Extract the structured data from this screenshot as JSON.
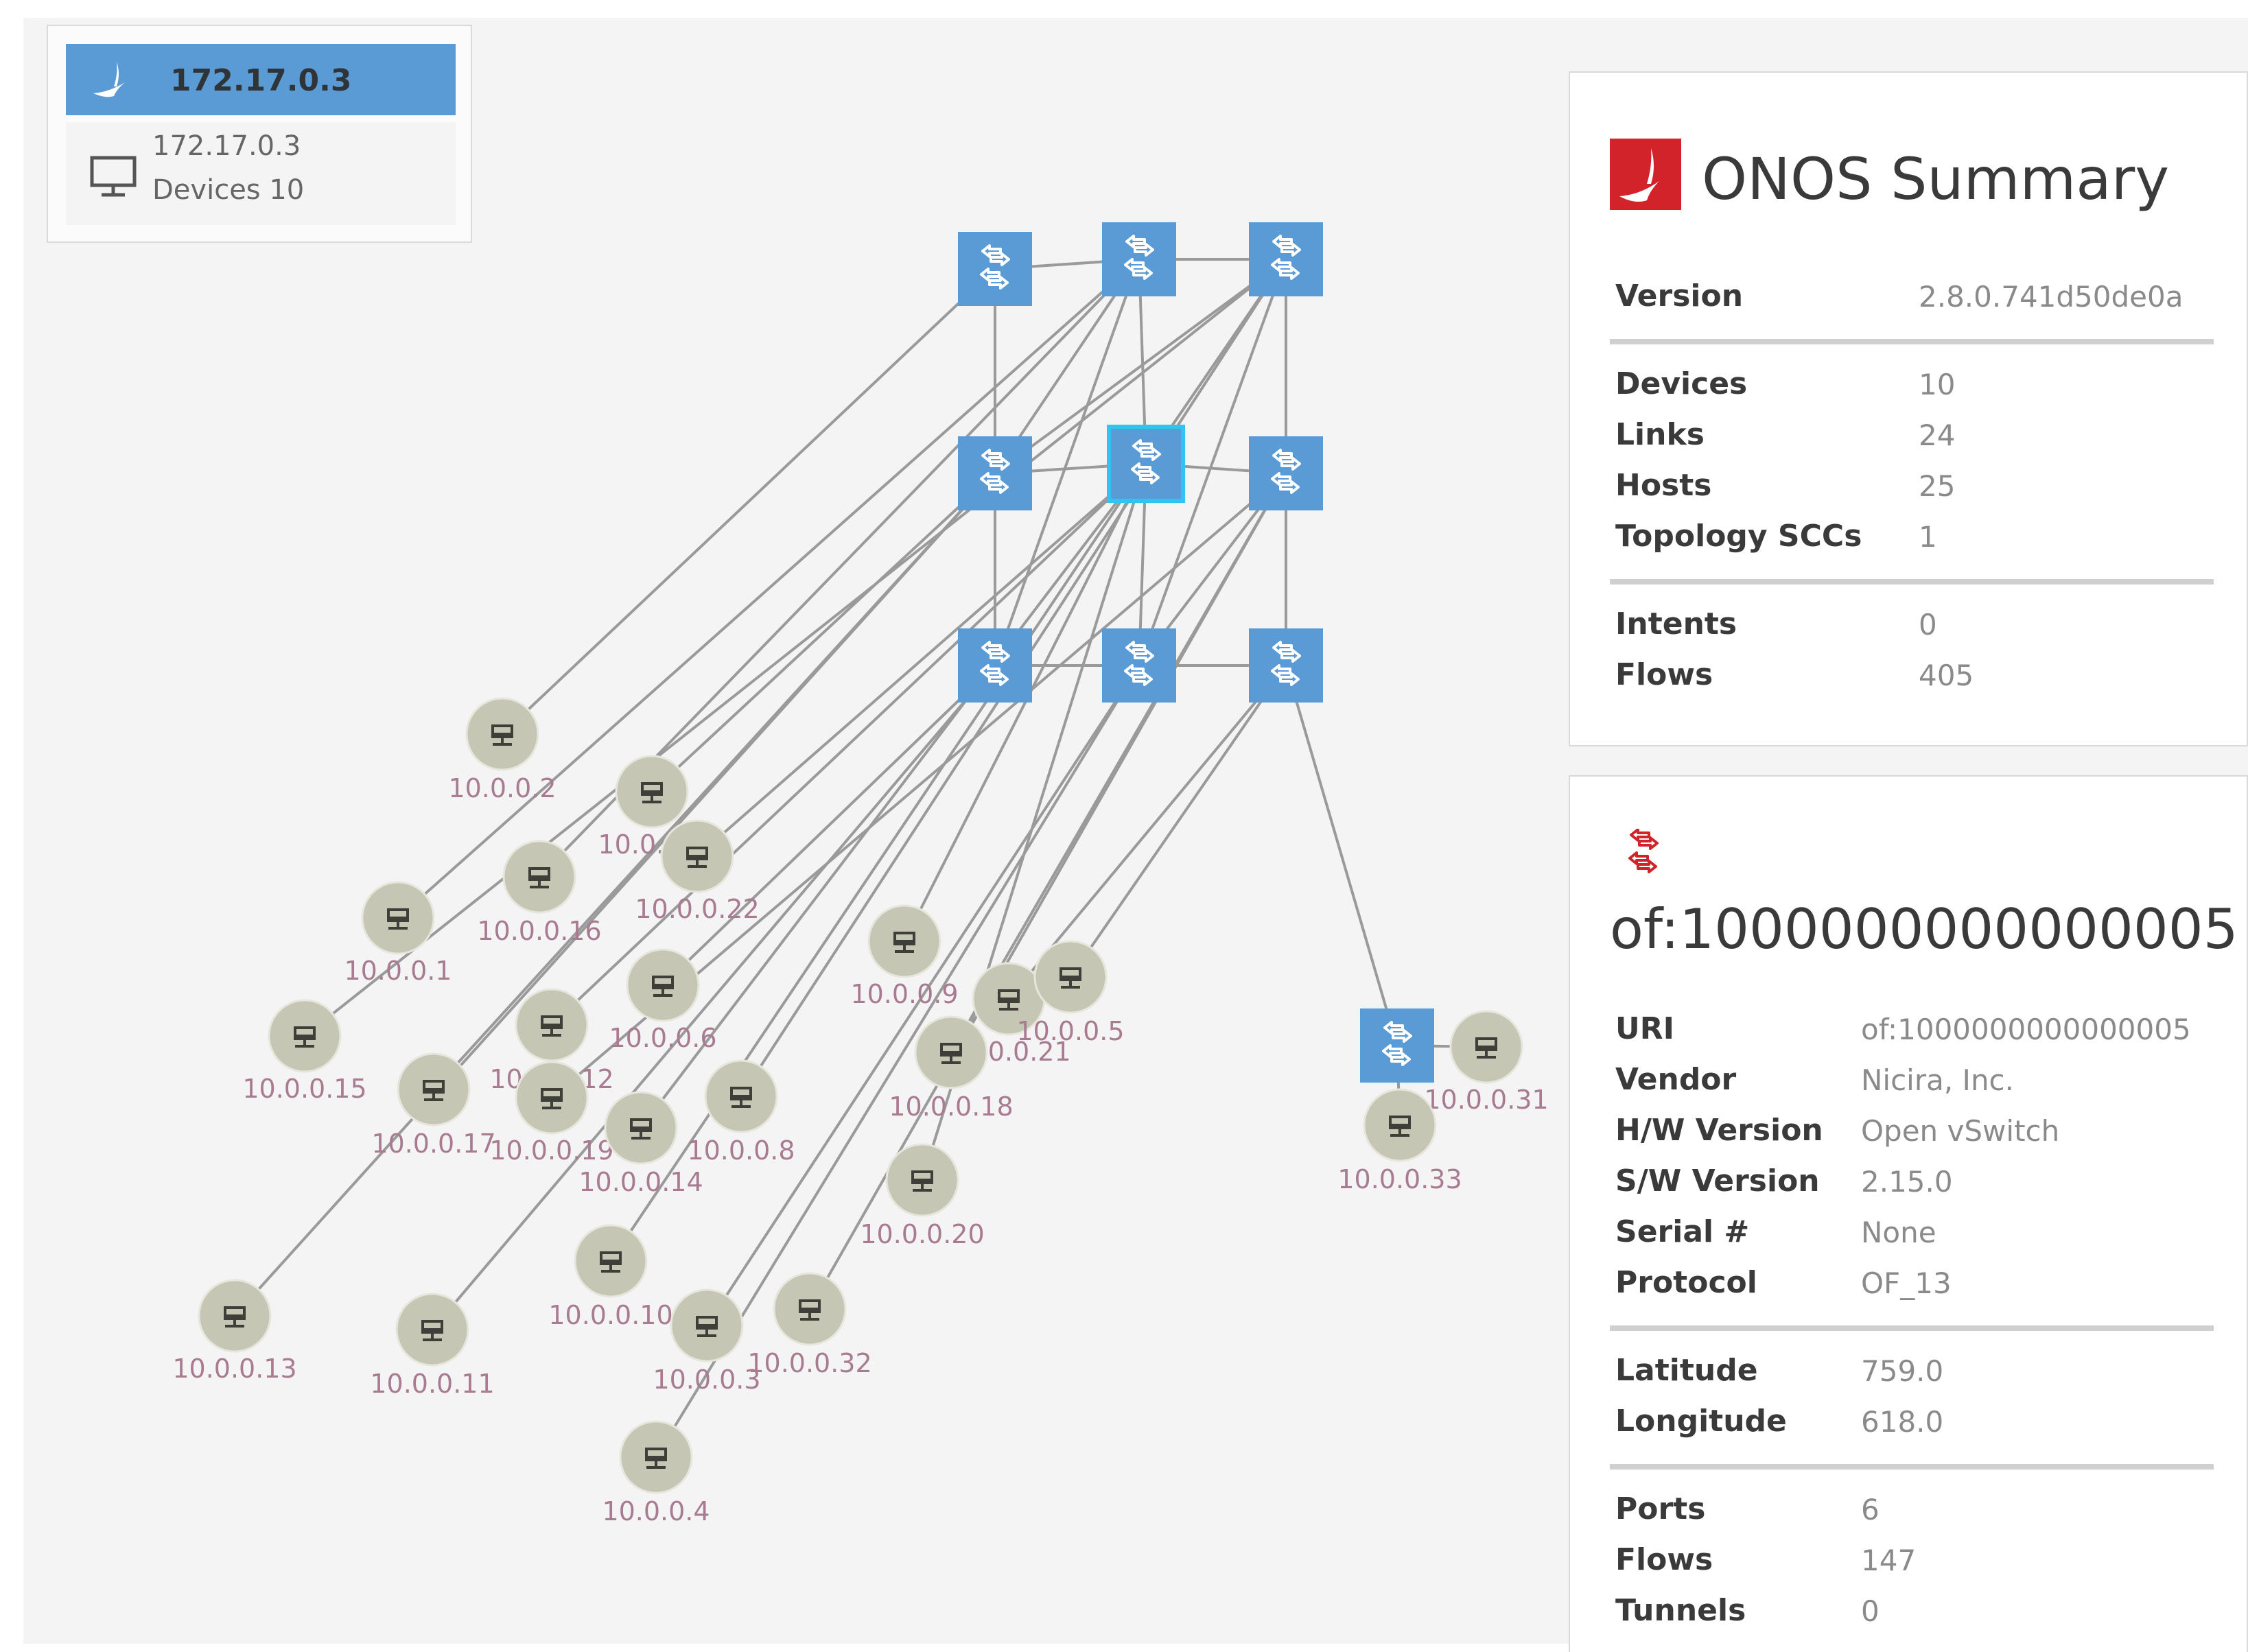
{
  "instance": {
    "title": "172.17.0.3",
    "ip": "172.17.0.3",
    "devices": "Devices 10",
    "logo_icon": "onos-bird-icon",
    "device_icon": "monitor-icon"
  },
  "summary": {
    "title": "ONOS Summary",
    "logo_icon": "onos-logo-icon",
    "groups": [
      [
        {
          "k": "Version",
          "v": "2.8.0.741d50de0a"
        }
      ],
      [
        {
          "k": "Devices",
          "v": "10"
        },
        {
          "k": "Links",
          "v": "24"
        },
        {
          "k": "Hosts",
          "v": "25"
        },
        {
          "k": "Topology SCCs",
          "v": "1"
        }
      ],
      [
        {
          "k": "Intents",
          "v": "0"
        },
        {
          "k": "Flows",
          "v": "405"
        }
      ]
    ]
  },
  "device": {
    "icon": "switch-icon",
    "title": "of:1000000000000005",
    "groups": [
      [
        {
          "k": "URI",
          "v": "of:1000000000000005"
        },
        {
          "k": "Vendor",
          "v": "Nicira, Inc."
        },
        {
          "k": "H/W Version",
          "v": "Open vSwitch"
        },
        {
          "k": "S/W Version",
          "v": "2.15.0"
        },
        {
          "k": "Serial #",
          "v": "None"
        },
        {
          "k": "Protocol",
          "v": "OF_13"
        }
      ],
      [
        {
          "k": "Latitude",
          "v": "759.0"
        },
        {
          "k": "Longitude",
          "v": "618.0"
        }
      ],
      [
        {
          "k": "Ports",
          "v": "6"
        },
        {
          "k": "Flows",
          "v": "147"
        },
        {
          "k": "Tunnels",
          "v": "0"
        }
      ]
    ]
  },
  "topology": {
    "colors": {
      "switch": "#5b9bd5",
      "switch_selected_border": "#31c4f3",
      "host": "#c6c6b4",
      "link": "#9a9a9a",
      "label": "#a97b91"
    },
    "selected_switch": "s5",
    "switches": [
      {
        "id": "s1"
      },
      {
        "id": "s2"
      },
      {
        "id": "s3"
      },
      {
        "id": "s4"
      },
      {
        "id": "s5"
      },
      {
        "id": "s6"
      },
      {
        "id": "s7"
      },
      {
        "id": "s8"
      },
      {
        "id": "s9"
      },
      {
        "id": "s10"
      }
    ],
    "hosts": [
      {
        "id": "h2",
        "label": "10.0.0.2"
      },
      {
        "id": "h1",
        "label": "10.0.0.1"
      },
      {
        "id": "h15",
        "label": "10.0.0.15"
      },
      {
        "id": "h16",
        "label": "10.0.0.16"
      },
      {
        "id": "h7",
        "label": "10.0.0.7"
      },
      {
        "id": "h22",
        "label": "10.0.0.22"
      },
      {
        "id": "h17",
        "label": "10.0.0.17"
      },
      {
        "id": "h12",
        "label": "10.0.0.12"
      },
      {
        "id": "h19",
        "label": "10.0.0.19"
      },
      {
        "id": "h6",
        "label": "10.0.0.6"
      },
      {
        "id": "h14",
        "label": "10.0.0.14"
      },
      {
        "id": "h8",
        "label": "10.0.0.8"
      },
      {
        "id": "h13",
        "label": "10.0.0.13"
      },
      {
        "id": "h11",
        "label": "10.0.0.11"
      },
      {
        "id": "h10",
        "label": "10.0.0.10"
      },
      {
        "id": "h3",
        "label": "10.0.0.3"
      },
      {
        "id": "h32",
        "label": "10.0.0.32"
      },
      {
        "id": "h4",
        "label": "10.0.0.4"
      },
      {
        "id": "h9",
        "label": "10.0.0.9"
      },
      {
        "id": "h21",
        "label": "10.0.0.21"
      },
      {
        "id": "h5",
        "label": "10.0.0.5"
      },
      {
        "id": "h18",
        "label": "10.0.0.18"
      },
      {
        "id": "h20",
        "label": "10.0.0.20"
      },
      {
        "id": "h31",
        "label": "10.0.0.31"
      },
      {
        "id": "h33",
        "label": "10.0.0.33"
      }
    ]
  }
}
